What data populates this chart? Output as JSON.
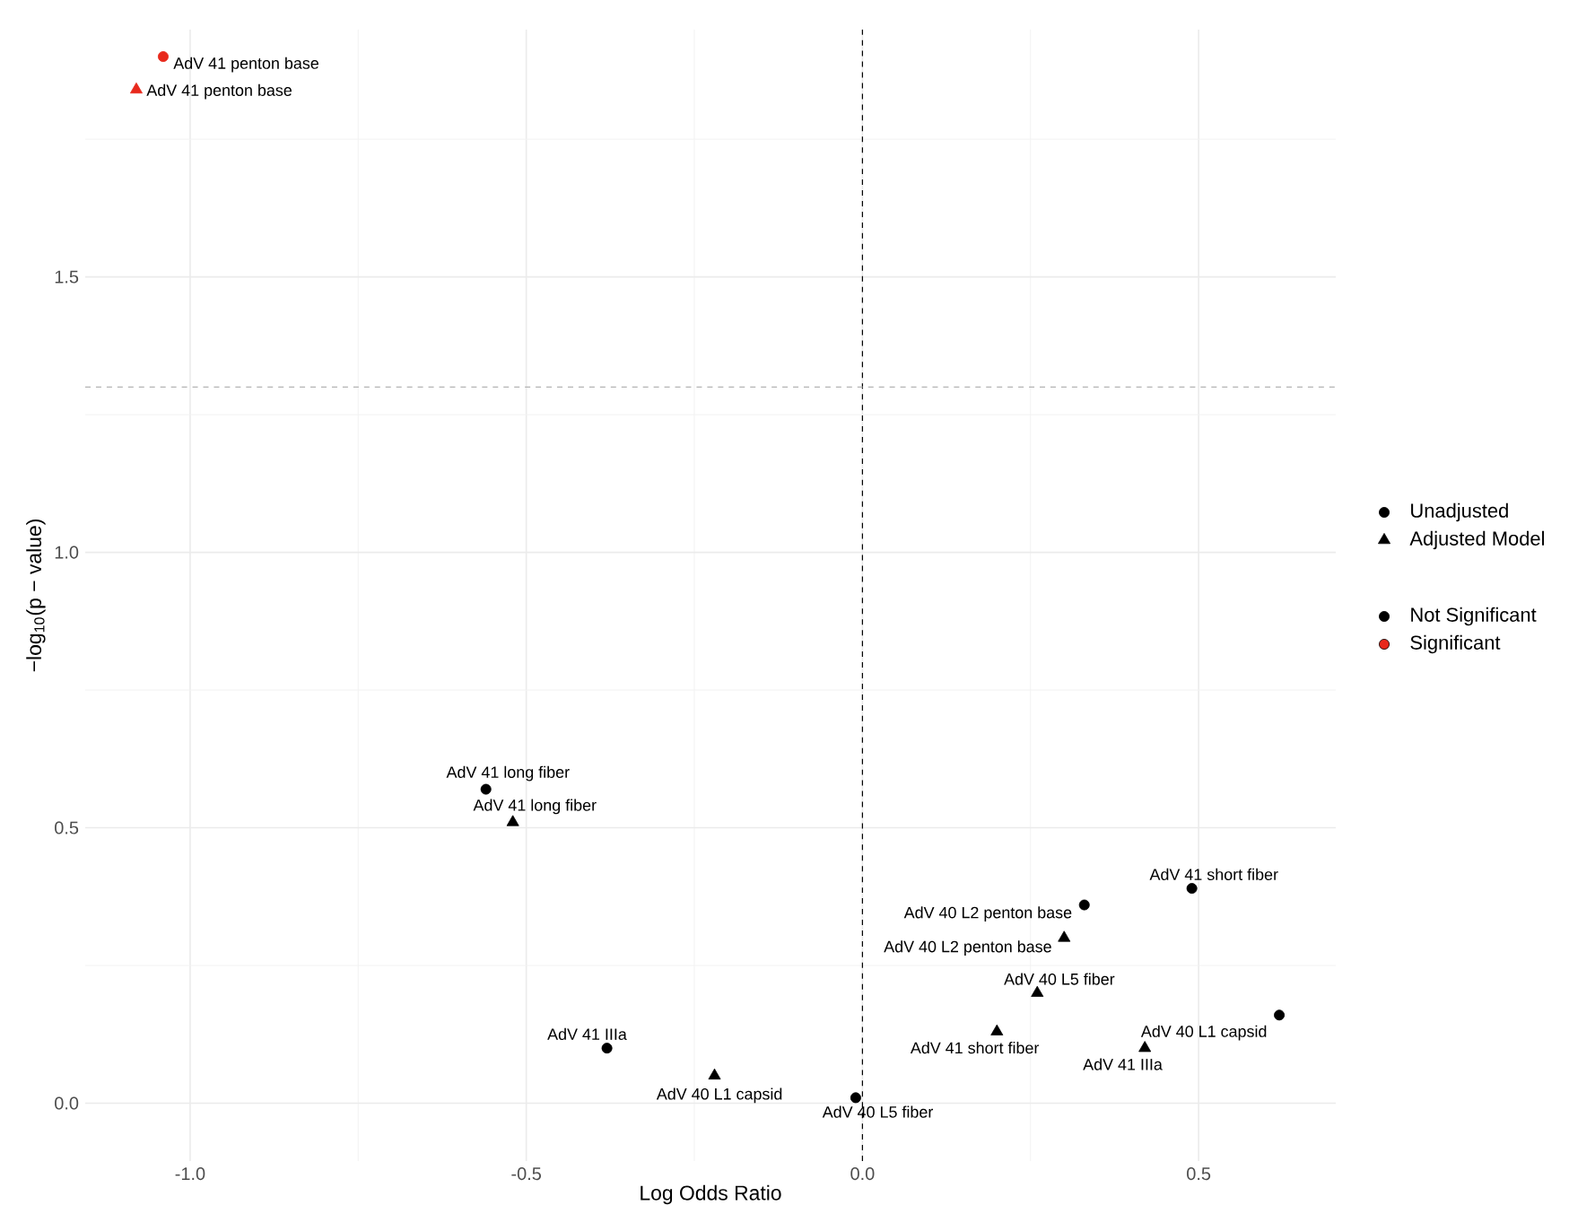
{
  "chart_data": {
    "type": "scatter",
    "xlabel": "Log Odds Ratio",
    "ylabel": "−log$_{10}$(p − value)",
    "xlim": [
      -1.156,
      0.704
    ],
    "ylim": [
      -0.105,
      1.949
    ],
    "xticks": [
      {
        "value": -1.0,
        "label": "-1.0"
      },
      {
        "value": -0.75,
        "label": null
      },
      {
        "value": -0.5,
        "label": "-0.5"
      },
      {
        "value": -0.25,
        "label": null
      },
      {
        "value": 0.0,
        "label": "0.0"
      },
      {
        "value": 0.25,
        "label": null
      },
      0.5
    ],
    "yticks": [
      {
        "value": 0.0,
        "label": "0.0"
      },
      {
        "value": 0.25,
        "label": null
      },
      0.5,
      {
        "value": 0.75,
        "label": null
      },
      {
        "value": 1.0,
        "label": "1.0"
      },
      {
        "value": 1.25,
        "label": null
      },
      1.5,
      {
        "value": 1.75,
        "label": null
      }
    ],
    "grid": true,
    "legend": "right",
    "ref_lines": [
      {
        "axis": "x",
        "value": 0,
        "color": "#000000",
        "line_style": "dashed"
      },
      {
        "axis": "y",
        "value": 1.3,
        "color": "#b3b3b3",
        "line_style": "dashed"
      }
    ],
    "series": [
      {
        "name": "Unadjusted",
        "marker": "circle",
        "color": "#000000",
        "x": [
          -1.04,
          -0.56,
          -0.38,
          -0.01,
          0.33,
          0.49,
          0.62
        ],
        "values": [
          1.9,
          0.57,
          0.1,
          0.01,
          0.36,
          0.39,
          0.16
        ],
        "colors": [
          "#e8291c",
          "#000000",
          "#000000",
          "#000000",
          "#000000",
          "#000000",
          "#000000"
        ],
        "value_labels": [
          "AdV 41 penton base",
          "AdV 41 long fiber",
          "AdV 41 IIIa",
          "AdV 40 L5 fiber",
          "AdV 40 L2 penton base",
          "AdV 41 short fiber",
          "AdV 40 L1 capsid"
        ]
      },
      {
        "name": "Adjusted Model",
        "marker": "triangle",
        "color": "#000000",
        "x": [
          -1.08,
          -0.52,
          -0.22,
          0.2,
          0.26,
          0.3,
          0.42
        ],
        "values": [
          1.84,
          0.51,
          0.05,
          0.13,
          0.2,
          0.3,
          0.1
        ],
        "colors": [
          "#e8291c",
          "#000000",
          "#000000",
          "#000000",
          "#000000",
          "#000000",
          "#000000"
        ],
        "value_labels": [
          "AdV 41 penton base",
          "AdV 41 long fiber",
          "AdV 40 L1 capsid",
          "AdV 41 short fiber",
          "AdV 40 L5 fiber",
          "AdV 40 L2 penton base",
          "AdV 41 IIIa"
        ]
      },
      {
        "name": "Not Significant",
        "color": "#000000"
      },
      {
        "name": "Significant",
        "color": "#e8291c"
      }
    ]
  }
}
